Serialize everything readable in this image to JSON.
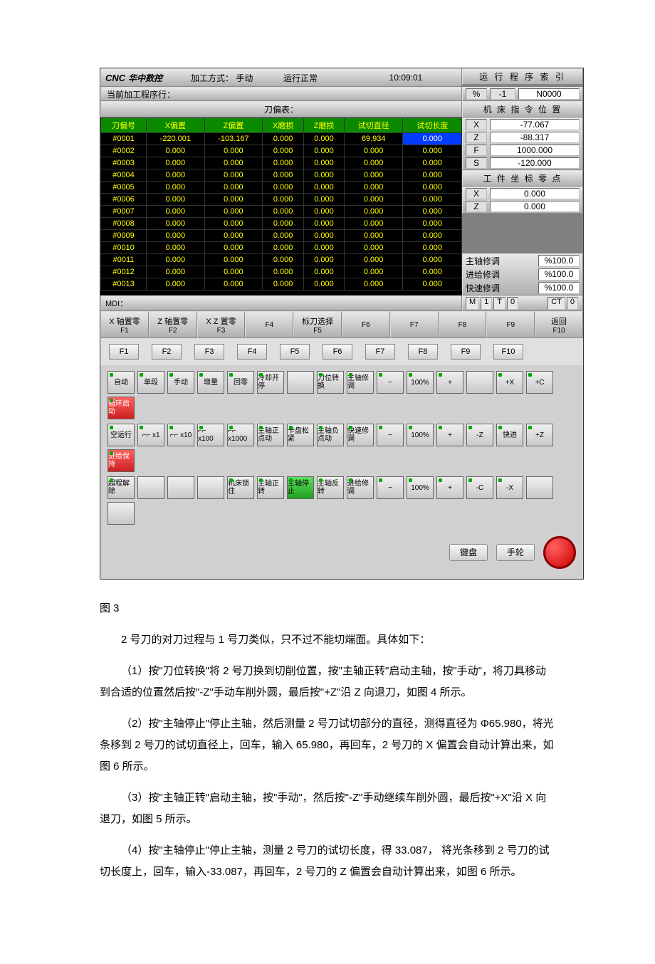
{
  "cnc": {
    "brand_prefix": "CNC",
    "brand": "华中数控",
    "mode_label": "加工方式：",
    "mode": "手动",
    "status": "运行正常",
    "time": "10:09:01",
    "prog_title_r": "运 行 程 序 索 引",
    "pct_label": "%",
    "pct_val": "-1",
    "nnum": "N0000",
    "prog_line_label": "当前加工程序行：",
    "pos_title": "机 床 指 令 位 置",
    "pos": {
      "X": "-77.067",
      "Z": "-88.317",
      "F": "1000.000",
      "S": "-120.000"
    },
    "wrk_title": "工 件 坐 标 零 点",
    "wrk": {
      "X": "0.000",
      "Z": "0.000"
    },
    "adj": {
      "spindle_label": "主轴修调",
      "spindle_val": "%100.0",
      "feed_label": "进给修调",
      "feed_val": "%100.0",
      "rapid_label": "快速修调",
      "rapid_val": "%100.0"
    },
    "mt": {
      "m": "M",
      "mval": "1",
      "t": "T",
      "tval": "0",
      "ct": "CT",
      "ctval": "0"
    },
    "table_title": "刀偏表：",
    "cols": [
      "刀偏号",
      "X偏置",
      "Z偏置",
      "X磨损",
      "Z磨损",
      "试切直径",
      "试切长度"
    ],
    "rows": [
      {
        "id": "#0001",
        "x": "-220.001",
        "z": "-103.167",
        "xw": "0.000",
        "zw": "0.000",
        "d": "69.934",
        "l": "0.000",
        "hl_l": true
      },
      {
        "id": "#0002",
        "x": "0.000",
        "z": "0.000",
        "xw": "0.000",
        "zw": "0.000",
        "d": "0.000",
        "l": "0.000"
      },
      {
        "id": "#0003",
        "x": "0.000",
        "z": "0.000",
        "xw": "0.000",
        "zw": "0.000",
        "d": "0.000",
        "l": "0.000"
      },
      {
        "id": "#0004",
        "x": "0.000",
        "z": "0.000",
        "xw": "0.000",
        "zw": "0.000",
        "d": "0.000",
        "l": "0.000"
      },
      {
        "id": "#0005",
        "x": "0.000",
        "z": "0.000",
        "xw": "0.000",
        "zw": "0.000",
        "d": "0.000",
        "l": "0.000"
      },
      {
        "id": "#0006",
        "x": "0.000",
        "z": "0.000",
        "xw": "0.000",
        "zw": "0.000",
        "d": "0.000",
        "l": "0.000"
      },
      {
        "id": "#0007",
        "x": "0.000",
        "z": "0.000",
        "xw": "0.000",
        "zw": "0.000",
        "d": "0.000",
        "l": "0.000"
      },
      {
        "id": "#0008",
        "x": "0.000",
        "z": "0.000",
        "xw": "0.000",
        "zw": "0.000",
        "d": "0.000",
        "l": "0.000"
      },
      {
        "id": "#0009",
        "x": "0.000",
        "z": "0.000",
        "xw": "0.000",
        "zw": "0.000",
        "d": "0.000",
        "l": "0.000"
      },
      {
        "id": "#0010",
        "x": "0.000",
        "z": "0.000",
        "xw": "0.000",
        "zw": "0.000",
        "d": "0.000",
        "l": "0.000"
      },
      {
        "id": "#0011",
        "x": "0.000",
        "z": "0.000",
        "xw": "0.000",
        "zw": "0.000",
        "d": "0.000",
        "l": "0.000"
      },
      {
        "id": "#0012",
        "x": "0.000",
        "z": "0.000",
        "xw": "0.000",
        "zw": "0.000",
        "d": "0.000",
        "l": "0.000"
      },
      {
        "id": "#0013",
        "x": "0.000",
        "z": "0.000",
        "xw": "0.000",
        "zw": "0.000",
        "d": "0.000",
        "l": "0.000"
      }
    ],
    "mdi": "MDI：",
    "softkeys": [
      {
        "t": "X 轴置零",
        "s": "F1"
      },
      {
        "t": "Z 轴置零",
        "s": "F2"
      },
      {
        "t": "X Z 置零",
        "s": "F3"
      },
      {
        "t": "",
        "s": "F4"
      },
      {
        "t": "标刀选择",
        "s": "F5"
      },
      {
        "t": "",
        "s": "F6"
      },
      {
        "t": "",
        "s": "F7"
      },
      {
        "t": "",
        "s": "F8"
      },
      {
        "t": "",
        "s": "F9"
      },
      {
        "t": "返回",
        "s": "F10"
      }
    ],
    "hardkeys": [
      "F1",
      "F2",
      "F3",
      "F4",
      "F5",
      "F6",
      "F7",
      "F8",
      "F9",
      "F10"
    ],
    "panel_rows": [
      [
        "自动",
        "单段",
        "手动",
        "增量",
        "回零",
        "冷却开停",
        "",
        "刀位转换",
        "主轴修调",
        "−",
        "100%",
        "+",
        "",
        "+X",
        "+C",
        "循环启动"
      ],
      [
        "空运行",
        "⌐⌐ x1",
        "⌐⌐ x10",
        "⌐⌐ x100",
        "⌐⌐ x1000",
        "主轴正点动",
        "卡盘松紧",
        "主轴负点动",
        "快速修调",
        "−",
        "100%",
        "+",
        "-Z",
        "快进",
        "+Z",
        "进给保持"
      ],
      [
        "超程解除",
        "",
        "",
        "",
        "机床锁住",
        "主轴正转",
        "主轴停止",
        "主轴反转",
        "进给修调",
        "−",
        "100%",
        "+",
        "-C",
        "-X",
        "",
        ""
      ]
    ],
    "specials": {
      "0-15": "red",
      "1-15": "red",
      "2-6": "green"
    },
    "kb_btn": "键盘",
    "wheel_btn": "手轮"
  },
  "doc": {
    "caption": "图 3",
    "p1": "2 号刀的对刀过程与 1 号刀类似，只不过不能切端面。具体如下：",
    "p2": "（1）按\"刀位转换\"将 2 号刀换到切削位置，按\"主轴正转\"启动主轴，按\"手动\"，将刀具移动到合适的位置然后按\"-Z\"手动车削外圆，最后按\"+Z\"沿 Z 向退刀，如图 4 所示。",
    "p3": "（2）按\"主轴停止\"停止主轴，然后测量 2 号刀试切部分的直径，测得直径为 Φ65.980，将光条移到 2 号刀的试切直径上，回车，输入 65.980，再回车，2 号刀的 X 偏置会自动计算出来，如图 6 所示。",
    "p4": "（3）按\"主轴正转\"启动主轴，按\"手动\"，然后按\"-Z\"手动继续车削外圆，最后按\"+X\"沿 X 向退刀，如图 5 所示。",
    "p5": "（4）按\"主轴停止\"停止主轴，测量 2 号刀的试切长度，得 33.087， 将光条移到 2 号刀的试切长度上，回车，输入-33.087，再回车，2 号刀的 Z 偏置会自动计算出来，如图 6 所示。"
  }
}
